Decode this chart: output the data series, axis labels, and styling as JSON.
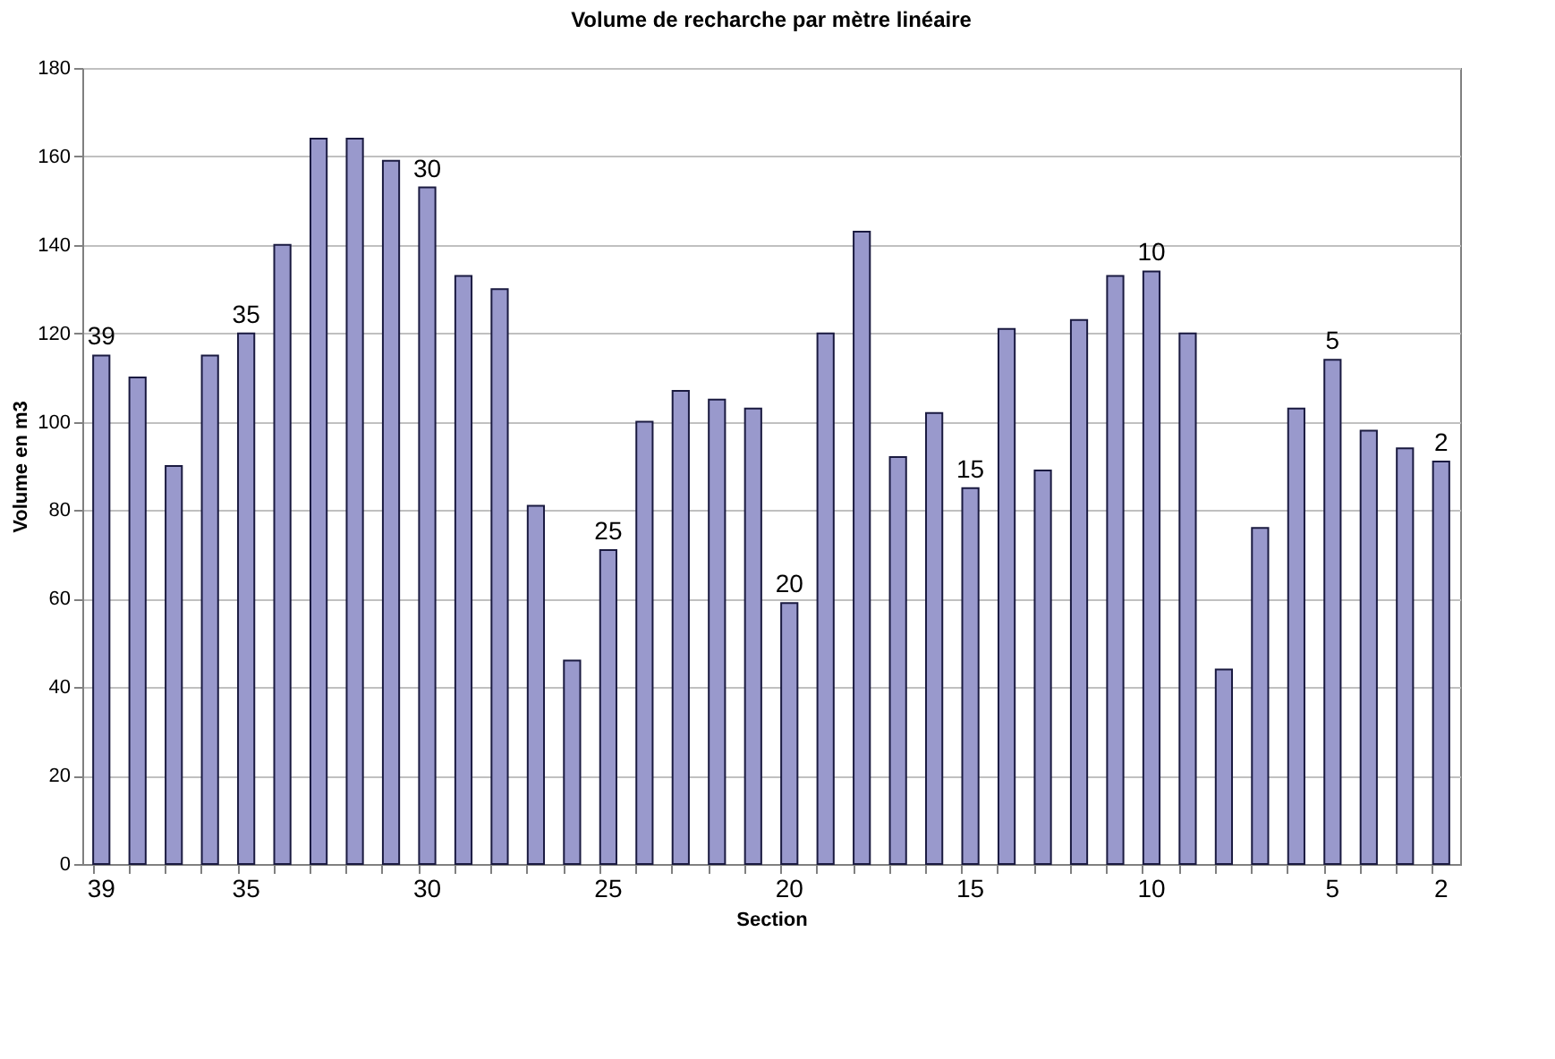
{
  "chart_data": {
    "type": "bar",
    "title": "Volume de recharche par mètre linéaire",
    "xlabel": "Section",
    "ylabel": "Volume en m3",
    "categories": [
      "39",
      null,
      null,
      null,
      "35",
      null,
      null,
      null,
      null,
      "30",
      null,
      null,
      null,
      null,
      "25",
      null,
      null,
      null,
      null,
      "20",
      null,
      null,
      null,
      null,
      "15",
      null,
      null,
      null,
      null,
      "10",
      null,
      null,
      null,
      null,
      "5",
      null,
      null,
      "2"
    ],
    "values": [
      115,
      110,
      90,
      115,
      120,
      140,
      164,
      164,
      159,
      153,
      133,
      130,
      81,
      46,
      71,
      100,
      107,
      105,
      103,
      59,
      120,
      143,
      92,
      102,
      85,
      121,
      89,
      123,
      133,
      134,
      120,
      44,
      76,
      103,
      114,
      98,
      94,
      91
    ],
    "color": "#9999cc",
    "ylim": [
      0,
      180
    ],
    "yticks": [
      0,
      20,
      40,
      60,
      80,
      100,
      120,
      140,
      160,
      180
    ],
    "grid": "y",
    "annotations": [
      {
        "text": "39",
        "x": "39",
        "y": 115
      },
      {
        "text": "35",
        "x": "35",
        "y": 120
      },
      {
        "text": "30",
        "x": "30",
        "y": 153
      },
      {
        "text": "25",
        "x": "25",
        "y": 71
      },
      {
        "text": "20",
        "x": "20",
        "y": 59
      },
      {
        "text": "15",
        "x": "15",
        "y": 85
      },
      {
        "text": "10",
        "x": "10",
        "y": 134
      },
      {
        "text": "5",
        "x": "5",
        "y": 114
      },
      {
        "text": "2",
        "x": "2",
        "y": 91
      }
    ]
  }
}
